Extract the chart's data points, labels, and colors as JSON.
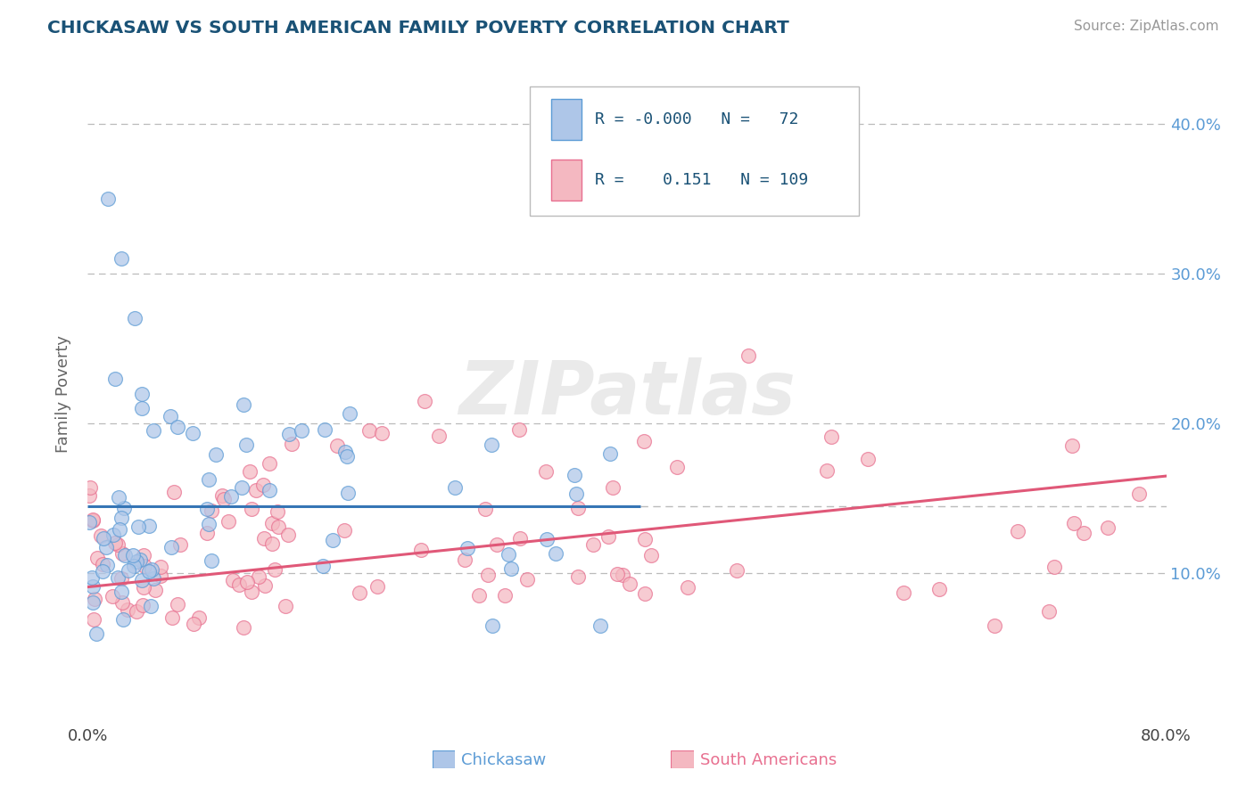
{
  "title": "CHICKASAW VS SOUTH AMERICAN FAMILY POVERTY CORRELATION CHART",
  "source": "Source: ZipAtlas.com",
  "ylabel": "Family Poverty",
  "xlim": [
    0.0,
    0.8
  ],
  "ylim": [
    0.0,
    0.44
  ],
  "yticks": [
    0.1,
    0.2,
    0.3,
    0.4
  ],
  "ytick_labels": [
    "10.0%",
    "20.0%",
    "30.0%",
    "40.0%"
  ],
  "xtick_labels": [
    "0.0%",
    "80.0%"
  ],
  "legend_r1": "-0.000",
  "legend_n1": "72",
  "legend_r2": "0.151",
  "legend_n2": "109",
  "chickasaw_color": "#aec6e8",
  "chickasaw_edge": "#5b9bd5",
  "south_american_color": "#f4b8c1",
  "south_american_edge": "#e87090",
  "trend_chickasaw_color": "#3575b5",
  "trend_south_american_color": "#e05878",
  "grid_color": "#bbbbbb",
  "title_color": "#1a5276",
  "source_color": "#999999",
  "ylabel_color": "#666666",
  "right_tick_color": "#5b9bd5",
  "watermark_text": "ZIPatlas",
  "legend_text_color": "#1a5276",
  "bottom_label_chick_color": "#5b9bd5",
  "bottom_label_south_color": "#e87090",
  "chick_trend_y_at_0": 0.145,
  "south_trend_y_at_0": 0.091,
  "south_trend_y_at_80": 0.165
}
